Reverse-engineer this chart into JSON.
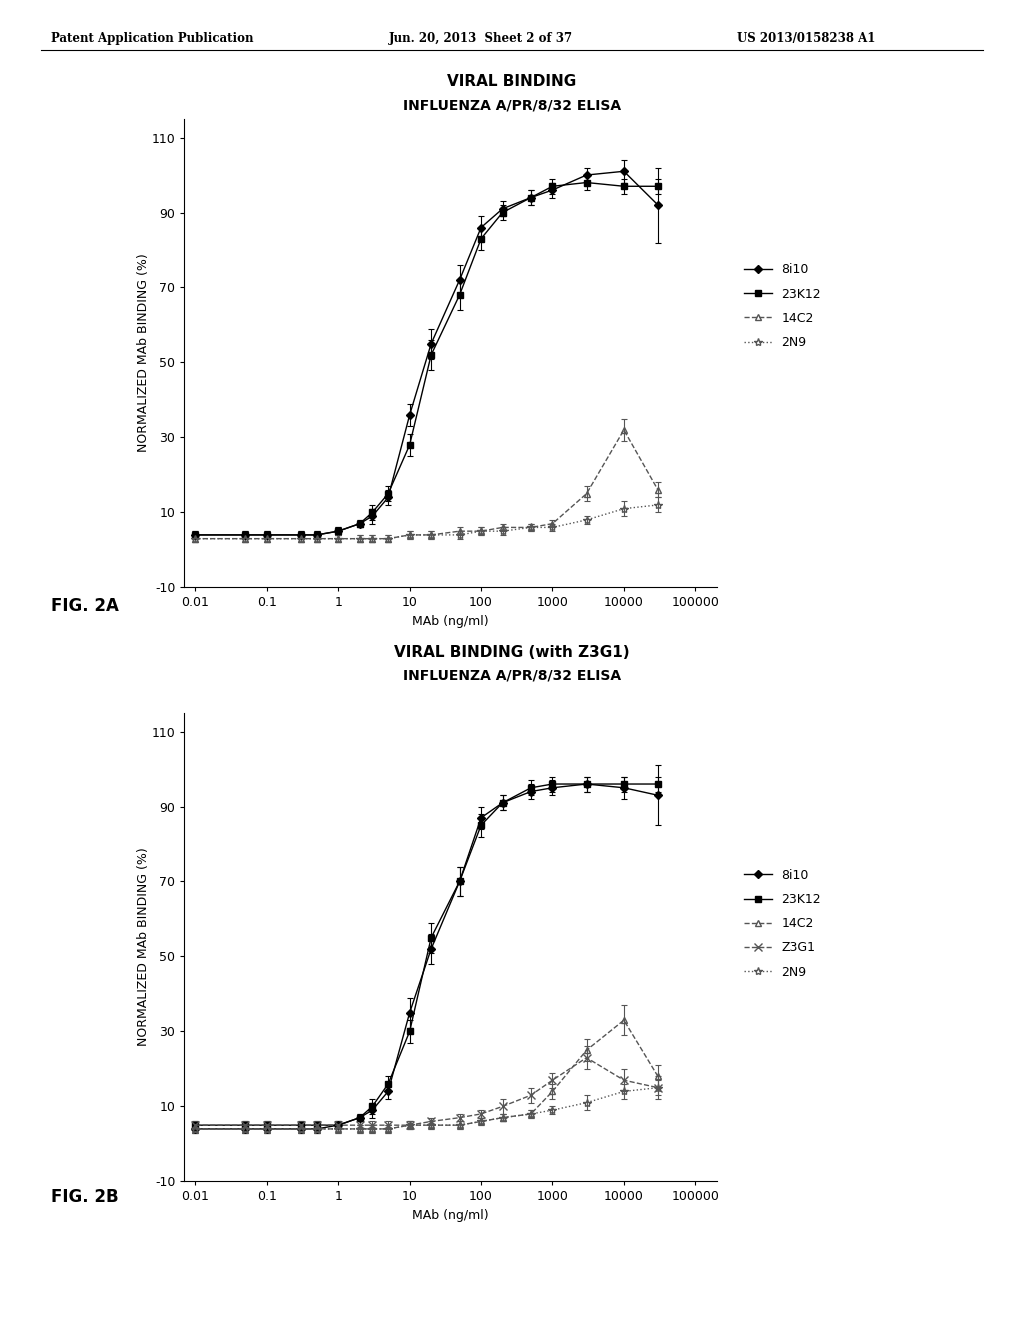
{
  "page_header_left": "Patent Application Publication",
  "page_header_mid": "Jun. 20, 2013  Sheet 2 of 37",
  "page_header_right": "US 2013/0158238 A1",
  "fig2a_title1": "VIRAL BINDING",
  "fig2a_title2": "INFLUENZA A/PR/8/32 ELISA",
  "fig2b_title1": "VIRAL BINDING (with Z3G1)",
  "fig2b_title2": "INFLUENZA A/PR/8/32 ELISA",
  "xlabel": "MAb (ng/ml)",
  "ylabel": "NORMALIZED MAb BINDING (%)",
  "fig_label_a": "FIG. 2A",
  "fig_label_b": "FIG. 2B",
  "ylim": [
    -10,
    115
  ],
  "yticks": [
    -10,
    10,
    30,
    50,
    70,
    90,
    110
  ],
  "xtick_labels": [
    "0.01",
    "0.1",
    "1",
    "10",
    "100",
    "1000",
    "10000",
    "100000"
  ],
  "xtick_values": [
    0.01,
    0.1,
    1,
    10,
    100,
    1000,
    10000,
    100000
  ],
  "series_2a": {
    "8i10": {
      "x": [
        0.01,
        0.05,
        0.1,
        0.3,
        0.5,
        1,
        2,
        3,
        5,
        10,
        20,
        50,
        100,
        200,
        500,
        1000,
        3000,
        10000,
        30000
      ],
      "y": [
        4,
        4,
        4,
        4,
        4,
        5,
        7,
        9,
        14,
        36,
        55,
        72,
        86,
        91,
        94,
        96,
        100,
        101,
        92
      ],
      "yerr": [
        1,
        1,
        1,
        1,
        1,
        1,
        1,
        2,
        2,
        3,
        4,
        4,
        3,
        2,
        2,
        2,
        2,
        3,
        10
      ],
      "marker": "D",
      "linestyle": "-",
      "color": "#000000",
      "markersize": 4,
      "label": "8i10"
    },
    "23K12": {
      "x": [
        0.01,
        0.05,
        0.1,
        0.3,
        0.5,
        1,
        2,
        3,
        5,
        10,
        20,
        50,
        100,
        200,
        500,
        1000,
        3000,
        10000,
        30000
      ],
      "y": [
        4,
        4,
        4,
        4,
        4,
        5,
        7,
        10,
        15,
        28,
        52,
        68,
        83,
        90,
        94,
        97,
        98,
        97,
        97
      ],
      "yerr": [
        1,
        1,
        1,
        1,
        1,
        1,
        1,
        2,
        2,
        3,
        4,
        4,
        3,
        2,
        2,
        2,
        2,
        2,
        2
      ],
      "marker": "s",
      "linestyle": "-",
      "color": "#000000",
      "markersize": 4,
      "label": "23K12"
    },
    "14C2": {
      "x": [
        0.01,
        0.05,
        0.1,
        0.3,
        0.5,
        1,
        2,
        3,
        5,
        10,
        20,
        50,
        100,
        200,
        500,
        1000,
        3000,
        10000,
        30000
      ],
      "y": [
        3,
        3,
        3,
        3,
        3,
        3,
        3,
        3,
        3,
        4,
        4,
        5,
        5,
        6,
        6,
        7,
        15,
        32,
        16
      ],
      "yerr": [
        1,
        1,
        1,
        1,
        1,
        1,
        1,
        1,
        1,
        1,
        1,
        1,
        1,
        1,
        1,
        1,
        2,
        3,
        2
      ],
      "marker": "^",
      "linestyle": "--",
      "color": "#555555",
      "markersize": 5,
      "label": "14C2",
      "markerfacecolor": "none"
    },
    "2N9": {
      "x": [
        0.01,
        0.05,
        0.1,
        0.3,
        0.5,
        1,
        2,
        3,
        5,
        10,
        20,
        50,
        100,
        200,
        500,
        1000,
        3000,
        10000,
        30000
      ],
      "y": [
        3,
        3,
        3,
        3,
        3,
        3,
        3,
        3,
        3,
        4,
        4,
        4,
        5,
        5,
        6,
        6,
        8,
        11,
        12
      ],
      "yerr": [
        1,
        1,
        1,
        1,
        1,
        1,
        1,
        1,
        1,
        1,
        1,
        1,
        1,
        1,
        1,
        1,
        1,
        2,
        2
      ],
      "marker": "*",
      "linestyle": "dotted",
      "color": "#555555",
      "markersize": 6,
      "label": "2N9",
      "markerfacecolor": "none"
    }
  },
  "series_2b": {
    "8i10": {
      "x": [
        0.01,
        0.05,
        0.1,
        0.3,
        0.5,
        1,
        2,
        3,
        5,
        10,
        20,
        50,
        100,
        200,
        500,
        1000,
        3000,
        10000,
        30000
      ],
      "y": [
        4,
        4,
        4,
        4,
        4,
        5,
        7,
        9,
        14,
        35,
        52,
        70,
        87,
        91,
        94,
        95,
        96,
        95,
        93
      ],
      "yerr": [
        1,
        1,
        1,
        1,
        1,
        1,
        1,
        2,
        2,
        4,
        4,
        4,
        3,
        2,
        2,
        2,
        2,
        3,
        8
      ],
      "marker": "D",
      "linestyle": "-",
      "color": "#000000",
      "markersize": 4,
      "label": "8i10"
    },
    "23K12": {
      "x": [
        0.01,
        0.05,
        0.1,
        0.3,
        0.5,
        1,
        2,
        3,
        5,
        10,
        20,
        50,
        100,
        200,
        500,
        1000,
        3000,
        10000,
        30000
      ],
      "y": [
        5,
        5,
        5,
        5,
        5,
        5,
        7,
        10,
        16,
        30,
        55,
        70,
        85,
        91,
        95,
        96,
        96,
        96,
        96
      ],
      "yerr": [
        1,
        1,
        1,
        1,
        1,
        1,
        1,
        2,
        2,
        3,
        4,
        4,
        3,
        2,
        2,
        2,
        2,
        2,
        2
      ],
      "marker": "s",
      "linestyle": "-",
      "color": "#000000",
      "markersize": 4,
      "label": "23K12"
    },
    "14C2": {
      "x": [
        0.01,
        0.05,
        0.1,
        0.3,
        0.5,
        1,
        2,
        3,
        5,
        10,
        20,
        50,
        100,
        200,
        500,
        1000,
        3000,
        10000,
        30000
      ],
      "y": [
        4,
        4,
        4,
        4,
        4,
        4,
        4,
        4,
        4,
        5,
        5,
        5,
        6,
        7,
        8,
        14,
        25,
        33,
        18
      ],
      "yerr": [
        1,
        1,
        1,
        1,
        1,
        1,
        1,
        1,
        1,
        1,
        1,
        1,
        1,
        1,
        1,
        2,
        3,
        4,
        3
      ],
      "marker": "^",
      "linestyle": "--",
      "color": "#555555",
      "markersize": 5,
      "label": "14C2",
      "markerfacecolor": "none"
    },
    "Z3G1": {
      "x": [
        0.01,
        0.05,
        0.1,
        0.3,
        0.5,
        1,
        2,
        3,
        5,
        10,
        20,
        50,
        100,
        200,
        500,
        1000,
        3000,
        10000,
        30000
      ],
      "y": [
        5,
        5,
        5,
        5,
        5,
        5,
        5,
        5,
        5,
        5,
        6,
        7,
        8,
        10,
        13,
        17,
        23,
        17,
        15
      ],
      "yerr": [
        1,
        1,
        1,
        1,
        1,
        1,
        1,
        1,
        1,
        1,
        1,
        1,
        1,
        2,
        2,
        2,
        3,
        3,
        3
      ],
      "marker": "x",
      "linestyle": "--",
      "color": "#555555",
      "markersize": 6,
      "label": "Z3G1",
      "markerfacecolor": "none"
    },
    "2N9": {
      "x": [
        0.01,
        0.05,
        0.1,
        0.3,
        0.5,
        1,
        2,
        3,
        5,
        10,
        20,
        50,
        100,
        200,
        500,
        1000,
        3000,
        10000,
        30000
      ],
      "y": [
        4,
        4,
        4,
        4,
        4,
        4,
        4,
        4,
        4,
        5,
        5,
        5,
        6,
        7,
        8,
        9,
        11,
        14,
        15
      ],
      "yerr": [
        1,
        1,
        1,
        1,
        1,
        1,
        1,
        1,
        1,
        1,
        1,
        1,
        1,
        1,
        1,
        1,
        2,
        2,
        2
      ],
      "marker": "*",
      "linestyle": "dotted",
      "color": "#555555",
      "markersize": 6,
      "label": "2N9",
      "markerfacecolor": "none"
    }
  },
  "background_color": "#ffffff",
  "text_color": "#000000",
  "fontsize_header": 8.5,
  "fontsize_title": 11,
  "fontsize_subtitle": 10,
  "fontsize_axis_label": 9,
  "fontsize_tick": 9,
  "fontsize_legend": 9,
  "fontsize_fig_label": 12
}
